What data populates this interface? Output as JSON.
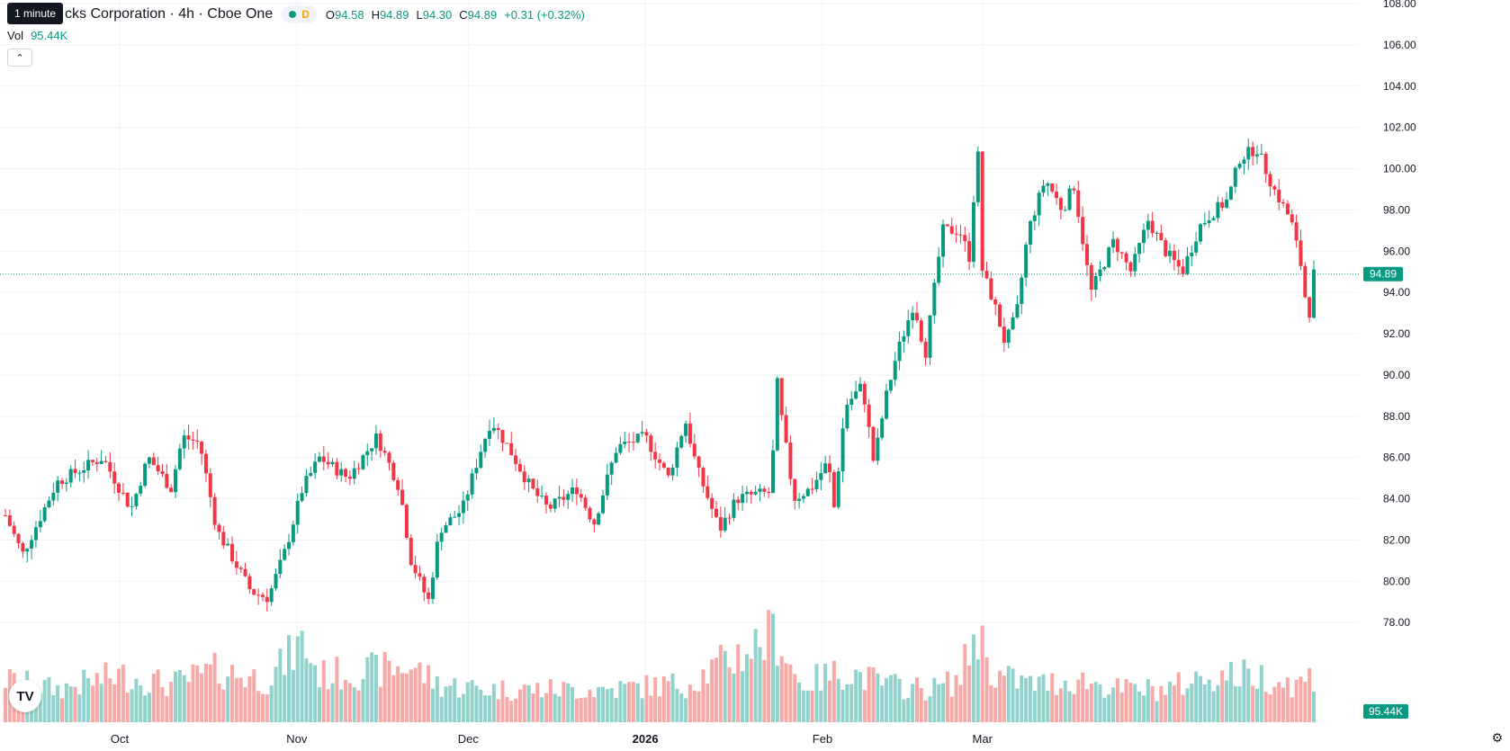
{
  "header": {
    "symbol_title": "cks Corporation · 4h · Cboe One",
    "status_letter": "D",
    "ohlc": [
      {
        "k": "O",
        "v": "94.58"
      },
      {
        "k": "H",
        "v": "94.89"
      },
      {
        "k": "L",
        "v": "94.30"
      },
      {
        "k": "C",
        "v": "94.89"
      }
    ],
    "change": "+0.31 (+0.32%)",
    "vol_label": "Vol",
    "vol_value": "95.44K",
    "tooltip": "1 minute"
  },
  "colors": {
    "up": "#089981",
    "down": "#f23645",
    "up_vol": "#92d2cc",
    "down_vol": "#f7a9a7",
    "grid": "#f0f3fa",
    "axis_text": "#131722"
  },
  "icons": {
    "collapse": "chevron-up-icon",
    "logo": "tradingview-logo",
    "settings": "gear-icon"
  },
  "chart_data": {
    "type": "candlestick",
    "title": "cks Corporation · 4h · Cboe One",
    "ylim": [
      76.0,
      108.0
    ],
    "yticks": [
      "108.00",
      "106.00",
      "104.00",
      "102.00",
      "100.00",
      "98.00",
      "96.00",
      "94.00",
      "92.00",
      "90.00",
      "88.00",
      "86.00",
      "84.00",
      "82.00",
      "80.00",
      "78.00"
    ],
    "x_labels": [
      {
        "label": "Oct",
        "date": "2025-10-01"
      },
      {
        "label": "Nov",
        "date": "2025-11-01"
      },
      {
        "label": "Dec",
        "date": "2025-12-01"
      },
      {
        "label": "2026",
        "date": "2026-01-01",
        "bold": true
      },
      {
        "label": "Feb",
        "date": "2026-02-01"
      },
      {
        "label": "Mar",
        "date": "2026-03-01"
      }
    ],
    "last_price": "94.89",
    "last_volume": "95.44K",
    "series": [
      {
        "name": "price",
        "anchors": [
          [
            "2025-09-11",
            83.2
          ],
          [
            "2025-09-14",
            81.3
          ],
          [
            "2025-09-20",
            84.8
          ],
          [
            "2025-09-28",
            86.0
          ],
          [
            "2025-10-03",
            83.5
          ],
          [
            "2025-10-06",
            86.0
          ],
          [
            "2025-10-10",
            84.5
          ],
          [
            "2025-10-12",
            87.0
          ],
          [
            "2025-10-15",
            86.7
          ],
          [
            "2025-10-18",
            82.5
          ],
          [
            "2025-10-24",
            79.5
          ],
          [
            "2025-10-27",
            79.2
          ],
          [
            "2025-10-30",
            81.5
          ],
          [
            "2025-11-02",
            84.5
          ],
          [
            "2025-11-05",
            86.0
          ],
          [
            "2025-11-10",
            85.0
          ],
          [
            "2025-11-15",
            87.0
          ],
          [
            "2025-11-17",
            85.8
          ],
          [
            "2025-11-19",
            84.5
          ],
          [
            "2025-11-21",
            81.0
          ],
          [
            "2025-11-24",
            79.0
          ],
          [
            "2025-11-26",
            82.5
          ],
          [
            "2025-11-30",
            83.5
          ],
          [
            "2025-12-03",
            86.2
          ],
          [
            "2025-12-05",
            87.8
          ],
          [
            "2025-12-08",
            86.5
          ],
          [
            "2025-12-12",
            84.5
          ],
          [
            "2025-12-15",
            83.5
          ],
          [
            "2025-12-20",
            84.5
          ],
          [
            "2025-12-23",
            82.8
          ],
          [
            "2025-12-27",
            86.5
          ],
          [
            "2026-01-01",
            87.0
          ],
          [
            "2026-01-05",
            85.0
          ],
          [
            "2026-01-08",
            87.8
          ],
          [
            "2026-01-10",
            85.5
          ],
          [
            "2026-01-14",
            82.5
          ],
          [
            "2026-01-17",
            84.0
          ],
          [
            "2026-01-20",
            84.2
          ],
          [
            "2026-01-23",
            84.3
          ],
          [
            "2026-01-24",
            89.8
          ],
          [
            "2026-01-25",
            87.6
          ],
          [
            "2026-01-27",
            84.0
          ],
          [
            "2026-01-30",
            84.5
          ],
          [
            "2026-02-02",
            85.8
          ],
          [
            "2026-02-03",
            83.5
          ],
          [
            "2026-02-05",
            88.5
          ],
          [
            "2026-02-08",
            89.5
          ],
          [
            "2026-02-10",
            85.7
          ],
          [
            "2026-02-12",
            88.8
          ],
          [
            "2026-02-14",
            91.0
          ],
          [
            "2026-02-17",
            93.5
          ],
          [
            "2026-02-19",
            91.0
          ],
          [
            "2026-02-22",
            97.0
          ],
          [
            "2026-02-25",
            97.0
          ],
          [
            "2026-02-27",
            95.5
          ],
          [
            "2026-02-28",
            102.2
          ],
          [
            "2026-03-01",
            95.0
          ],
          [
            "2026-03-03",
            93.5
          ],
          [
            "2026-03-05",
            91.5
          ],
          [
            "2026-03-07",
            93.0
          ],
          [
            "2026-03-09",
            97.0
          ],
          [
            "2026-03-12",
            99.5
          ],
          [
            "2026-03-15",
            98.0
          ],
          [
            "2026-03-17",
            99.2
          ],
          [
            "2026-03-20",
            94.0
          ],
          [
            "2026-03-24",
            96.5
          ],
          [
            "2026-03-27",
            95.0
          ],
          [
            "2026-03-30",
            97.5
          ],
          [
            "2026-04-02",
            96.0
          ],
          [
            "2026-04-05",
            95.0
          ],
          [
            "2026-04-08",
            97.2
          ],
          [
            "2026-04-10",
            97.8
          ],
          [
            "2026-04-13",
            98.5
          ],
          [
            "2026-04-15",
            100.5
          ],
          [
            "2026-04-18",
            101.0
          ],
          [
            "2026-04-21",
            99.0
          ],
          [
            "2026-04-24",
            97.5
          ],
          [
            "2026-04-26",
            95.0
          ],
          [
            "2026-04-27",
            92.5
          ],
          [
            "2026-04-28",
            94.9
          ]
        ]
      },
      {
        "name": "Vol",
        "anchors": [
          [
            "2025-09-11",
            0.45
          ],
          [
            "2025-09-20",
            0.35
          ],
          [
            "2025-10-01",
            0.5
          ],
          [
            "2025-10-10",
            0.4
          ],
          [
            "2025-10-18",
            0.55
          ],
          [
            "2025-10-27",
            0.45
          ],
          [
            "2025-11-02",
            0.85
          ],
          [
            "2025-11-05",
            0.5
          ],
          [
            "2025-11-15",
            0.55
          ],
          [
            "2025-11-21",
            0.6
          ],
          [
            "2025-11-26",
            0.4
          ],
          [
            "2025-12-05",
            0.35
          ],
          [
            "2025-12-15",
            0.35
          ],
          [
            "2025-12-25",
            0.35
          ],
          [
            "2026-01-05",
            0.4
          ],
          [
            "2026-01-08",
            0.4
          ],
          [
            "2026-01-24",
            0.95
          ],
          [
            "2026-01-28",
            0.4
          ],
          [
            "2026-02-05",
            0.55
          ],
          [
            "2026-02-12",
            0.4
          ],
          [
            "2026-02-20",
            0.35
          ],
          [
            "2026-02-25",
            0.45
          ],
          [
            "2026-02-28",
            1.0
          ],
          [
            "2026-03-03",
            0.5
          ],
          [
            "2026-03-10",
            0.4
          ],
          [
            "2026-03-18",
            0.45
          ],
          [
            "2026-03-25",
            0.35
          ],
          [
            "2026-04-02",
            0.35
          ],
          [
            "2026-04-10",
            0.5
          ],
          [
            "2026-04-18",
            0.5
          ],
          [
            "2026-04-25",
            0.4
          ],
          [
            "2026-04-28",
            0.5
          ]
        ]
      }
    ]
  }
}
